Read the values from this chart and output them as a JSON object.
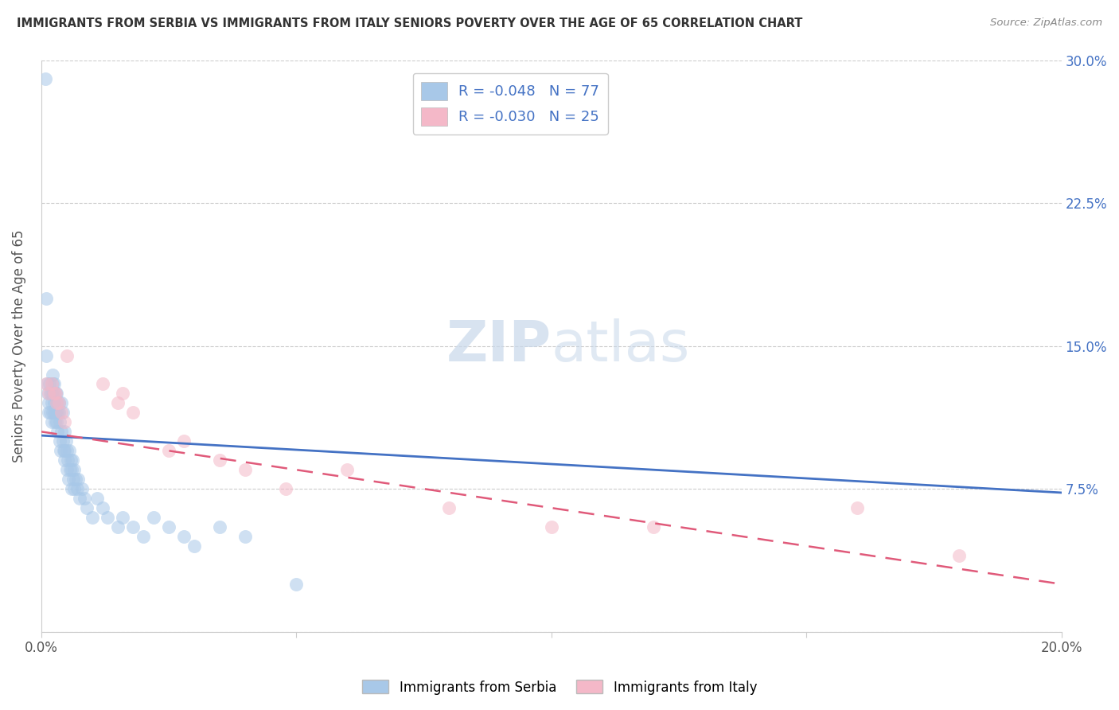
{
  "title": "IMMIGRANTS FROM SERBIA VS IMMIGRANTS FROM ITALY SENIORS POVERTY OVER THE AGE OF 65 CORRELATION CHART",
  "source": "Source: ZipAtlas.com",
  "ylabel": "Seniors Poverty Over the Age of 65",
  "xlim": [
    0.0,
    0.2
  ],
  "ylim": [
    0.0,
    0.3
  ],
  "serbia_color": "#a8c8e8",
  "italy_color": "#f4b8c8",
  "regression_color_serbia": "#4472c4",
  "regression_color_italy": "#e05a7a",
  "watermark_color": "#c8d8ea",
  "serbia_x": [
    0.0008,
    0.001,
    0.001,
    0.0012,
    0.0013,
    0.0015,
    0.0015,
    0.0016,
    0.0018,
    0.0018,
    0.002,
    0.002,
    0.002,
    0.0022,
    0.0022,
    0.0022,
    0.0024,
    0.0025,
    0.0025,
    0.0026,
    0.0027,
    0.0028,
    0.0028,
    0.003,
    0.003,
    0.003,
    0.0032,
    0.0032,
    0.0034,
    0.0035,
    0.0036,
    0.0037,
    0.0038,
    0.004,
    0.004,
    0.0042,
    0.0043,
    0.0044,
    0.0045,
    0.0045,
    0.0046,
    0.0048,
    0.005,
    0.005,
    0.0052,
    0.0053,
    0.0055,
    0.0056,
    0.0058,
    0.006,
    0.006,
    0.0062,
    0.0063,
    0.0064,
    0.0065,
    0.0068,
    0.007,
    0.0072,
    0.0075,
    0.008,
    0.0085,
    0.009,
    0.01,
    0.011,
    0.012,
    0.013,
    0.015,
    0.016,
    0.018,
    0.02,
    0.022,
    0.025,
    0.028,
    0.03,
    0.035,
    0.04,
    0.05
  ],
  "serbia_y": [
    0.29,
    0.175,
    0.145,
    0.13,
    0.125,
    0.12,
    0.115,
    0.13,
    0.125,
    0.115,
    0.125,
    0.12,
    0.11,
    0.135,
    0.13,
    0.115,
    0.125,
    0.13,
    0.115,
    0.12,
    0.11,
    0.125,
    0.115,
    0.125,
    0.12,
    0.11,
    0.115,
    0.105,
    0.12,
    0.115,
    0.1,
    0.11,
    0.095,
    0.12,
    0.105,
    0.1,
    0.115,
    0.095,
    0.105,
    0.095,
    0.09,
    0.1,
    0.095,
    0.085,
    0.09,
    0.08,
    0.095,
    0.085,
    0.09,
    0.085,
    0.075,
    0.09,
    0.08,
    0.075,
    0.085,
    0.08,
    0.075,
    0.08,
    0.07,
    0.075,
    0.07,
    0.065,
    0.06,
    0.07,
    0.065,
    0.06,
    0.055,
    0.06,
    0.055,
    0.05,
    0.06,
    0.055,
    0.05,
    0.045,
    0.055,
    0.05,
    0.025
  ],
  "italy_x": [
    0.001,
    0.0015,
    0.002,
    0.0025,
    0.0028,
    0.003,
    0.0035,
    0.004,
    0.0045,
    0.005,
    0.012,
    0.015,
    0.016,
    0.018,
    0.025,
    0.028,
    0.035,
    0.04,
    0.048,
    0.06,
    0.08,
    0.1,
    0.12,
    0.16,
    0.18
  ],
  "italy_y": [
    0.13,
    0.125,
    0.13,
    0.125,
    0.125,
    0.12,
    0.12,
    0.115,
    0.11,
    0.145,
    0.13,
    0.12,
    0.125,
    0.115,
    0.095,
    0.1,
    0.09,
    0.085,
    0.075,
    0.085,
    0.065,
    0.055,
    0.055,
    0.065,
    0.04
  ]
}
